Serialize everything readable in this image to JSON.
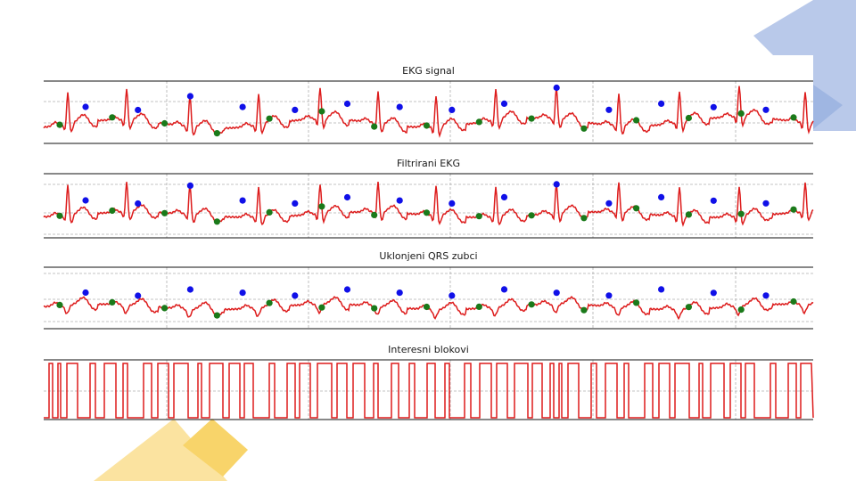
{
  "colors": {
    "signal": "#dd1c1c",
    "marker_blue": "#1010e8",
    "marker_green": "#1a7a1a",
    "grid": "#b0b0b0",
    "deco_blue": "#b9c9ea",
    "deco_yellow": "#fbe3a0",
    "deco_yellow_dark": "#f8d46a"
  },
  "chart_data": [
    {
      "type": "line",
      "title": "EKG signal",
      "grid": true,
      "series": [
        {
          "markers": {
            "blue": 14,
            "green": 15
          }
        }
      ]
    },
    {
      "type": "line",
      "title": "Filtrirani EKG",
      "grid": true,
      "series": [
        {
          "markers": {
            "blue": 14,
            "green": 15
          }
        }
      ]
    },
    {
      "type": "line",
      "title": "Uklonjeni QRS zubci",
      "grid": true,
      "series": [
        {
          "markers": {
            "blue": 14,
            "green": 15
          }
        }
      ]
    },
    {
      "type": "line",
      "title": "Interesni blokovi",
      "grid": true,
      "series": [
        {
          "style": "step",
          "levels": [
            0,
            1
          ]
        }
      ]
    }
  ]
}
